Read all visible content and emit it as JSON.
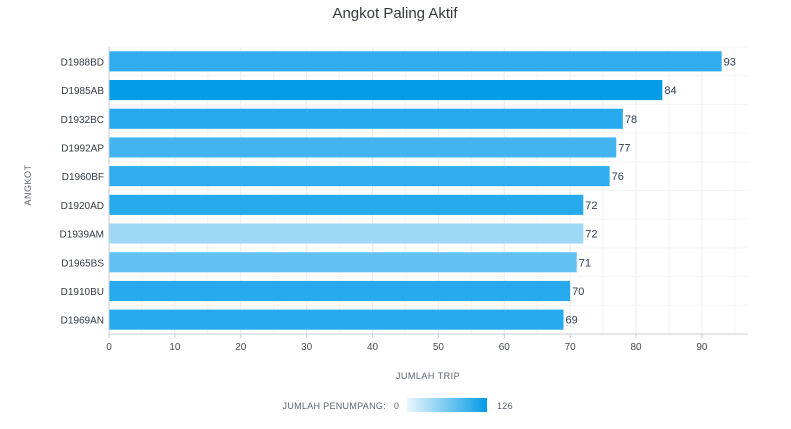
{
  "chart_data": {
    "type": "bar",
    "orientation": "horizontal",
    "title": "Angkot Paling Aktif",
    "xlabel": "JUMLAH TRIP",
    "ylabel": "ANGKOT",
    "categories": [
      "D1988BD",
      "D1985AB",
      "D1932BC",
      "D1992AP",
      "D1960BF",
      "D1920AD",
      "D1939AM",
      "D1965BS",
      "D1910BU",
      "D1969AN"
    ],
    "values": [
      93,
      84,
      78,
      77,
      76,
      72,
      72,
      71,
      70,
      69
    ],
    "data_labels": [
      "93",
      "84",
      "78",
      "77",
      "76",
      "72",
      "72",
      "71",
      "70",
      "69"
    ],
    "xlim": [
      0,
      97
    ],
    "xticks": [
      0,
      10,
      20,
      30,
      40,
      50,
      60,
      70,
      80,
      90
    ],
    "xtick_labels": [
      "0",
      "10",
      "20",
      "30",
      "40",
      "50",
      "60",
      "70",
      "80",
      "90"
    ],
    "grid": true,
    "color_legend": {
      "label": "JUMLAH PENUMPANG",
      "min_label": "0",
      "max_label": "126",
      "color_from": "#eaf6fd",
      "color_to": "#039be5",
      "placement": "bottom-center"
    },
    "bar_colors": [
      "#30acef",
      "#049de6",
      "#27a9ee",
      "#43b4f0",
      "#30adef",
      "#27a9ee",
      "#9fd8f6",
      "#62c0f3",
      "#27a9ee",
      "#27a9ee"
    ]
  }
}
